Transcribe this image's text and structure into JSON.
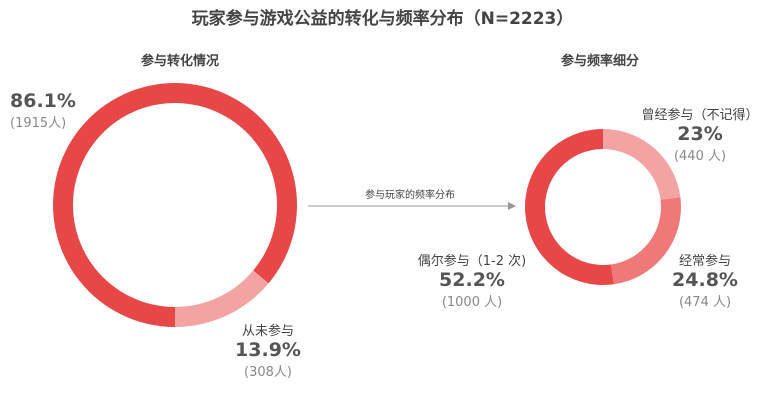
{
  "title": "玩家参与游戏公益的转化与频率分布（N=2223）",
  "chart_data": [
    {
      "type": "pie",
      "title": "参与转化情况",
      "slices": [
        {
          "label": "",
          "percent": "86.1%",
          "count": "(1915人)",
          "value": 86.1,
          "color": "#e84747"
        },
        {
          "label": "从未参与",
          "percent": "13.9%",
          "count": "(308人)",
          "value": 13.9,
          "color": "#f4a3a3"
        }
      ]
    },
    {
      "type": "pie",
      "title": "参与频率细分",
      "slices": [
        {
          "label": "曾经参与（不记得）",
          "percent": "23%",
          "count": "(440 人)",
          "value": 23.0,
          "color": "#f4a3a3"
        },
        {
          "label": "经常参与",
          "percent": "24.8%",
          "count": "(474 人)",
          "value": 24.8,
          "color": "#ef7878"
        },
        {
          "label": "偶尔参与（1-2 次)",
          "percent": "52.2%",
          "count": "(1000 人)",
          "value": 52.2,
          "color": "#e84747"
        }
      ]
    }
  ],
  "arrow_label": "参与玩家的频率分布",
  "colors": {
    "arrow": "#999999"
  }
}
